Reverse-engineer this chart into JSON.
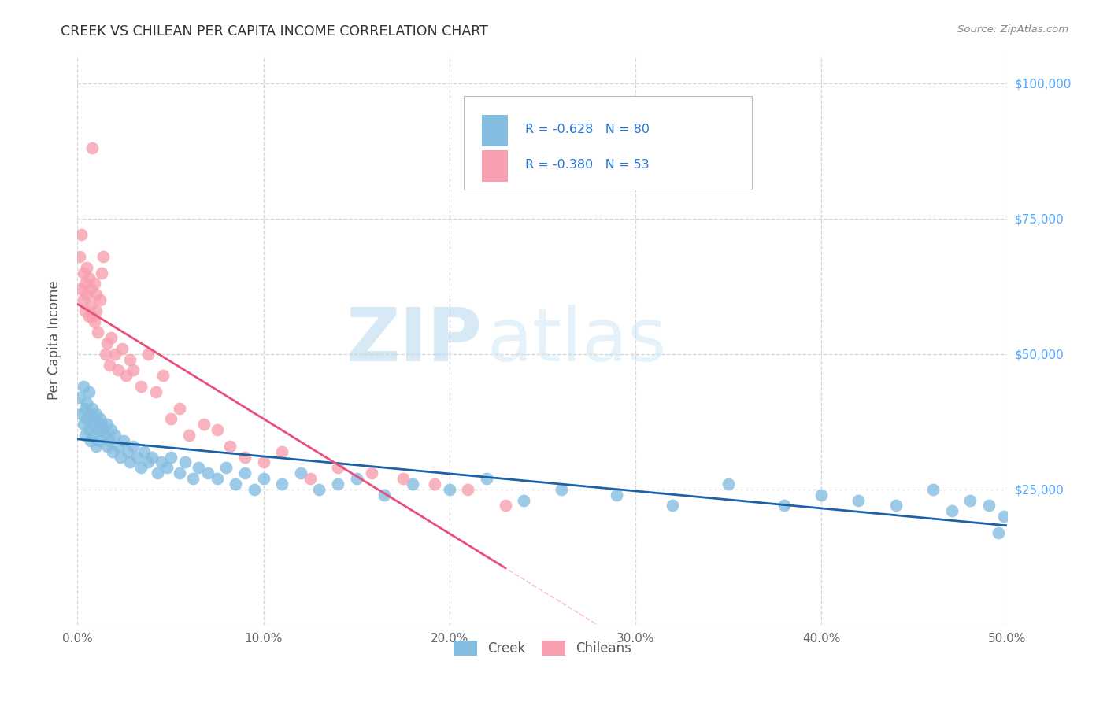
{
  "title": "CREEK VS CHILEAN PER CAPITA INCOME CORRELATION CHART",
  "source": "Source: ZipAtlas.com",
  "ylabel": "Per Capita Income",
  "xlabel_ticks": [
    "0.0%",
    "10.0%",
    "20.0%",
    "30.0%",
    "40.0%",
    "50.0%"
  ],
  "y_tick_values": [
    0,
    25000,
    50000,
    75000,
    100000
  ],
  "y_tick_labels": [
    "",
    "$25,000",
    "$50,000",
    "$75,000",
    "$100,000"
  ],
  "x_tick_values": [
    0.0,
    0.1,
    0.2,
    0.3,
    0.4,
    0.5
  ],
  "xmin": 0.0,
  "xmax": 0.5,
  "ymin": 0,
  "ymax": 105000,
  "legend_creek": "R = -0.628   N = 80",
  "legend_chilean": "R = -0.380   N = 53",
  "creek_color": "#85bde0",
  "chilean_color": "#f8a0b0",
  "creek_line_color": "#1a62a8",
  "chilean_line_color": "#e8507a",
  "creek_R": -0.628,
  "creek_N": 80,
  "chilean_R": -0.38,
  "chilean_N": 53,
  "creek_x": [
    0.001,
    0.002,
    0.003,
    0.003,
    0.004,
    0.004,
    0.005,
    0.005,
    0.006,
    0.006,
    0.007,
    0.007,
    0.008,
    0.008,
    0.009,
    0.009,
    0.01,
    0.01,
    0.011,
    0.012,
    0.012,
    0.013,
    0.014,
    0.015,
    0.016,
    0.016,
    0.017,
    0.018,
    0.019,
    0.02,
    0.022,
    0.023,
    0.025,
    0.027,
    0.028,
    0.03,
    0.032,
    0.034,
    0.036,
    0.038,
    0.04,
    0.043,
    0.045,
    0.048,
    0.05,
    0.055,
    0.058,
    0.062,
    0.065,
    0.07,
    0.075,
    0.08,
    0.085,
    0.09,
    0.095,
    0.1,
    0.11,
    0.12,
    0.13,
    0.14,
    0.15,
    0.165,
    0.18,
    0.2,
    0.22,
    0.24,
    0.26,
    0.29,
    0.32,
    0.35,
    0.38,
    0.4,
    0.42,
    0.44,
    0.46,
    0.47,
    0.48,
    0.49,
    0.495,
    0.498
  ],
  "creek_y": [
    42000,
    39000,
    44000,
    37000,
    40000,
    35000,
    41000,
    38000,
    43000,
    36000,
    39000,
    34000,
    40000,
    37000,
    38000,
    35000,
    39000,
    33000,
    36000,
    38000,
    34000,
    37000,
    36000,
    35000,
    33000,
    37000,
    34000,
    36000,
    32000,
    35000,
    33000,
    31000,
    34000,
    32000,
    30000,
    33000,
    31000,
    29000,
    32000,
    30000,
    31000,
    28000,
    30000,
    29000,
    31000,
    28000,
    30000,
    27000,
    29000,
    28000,
    27000,
    29000,
    26000,
    28000,
    25000,
    27000,
    26000,
    28000,
    25000,
    26000,
    27000,
    24000,
    26000,
    25000,
    27000,
    23000,
    25000,
    24000,
    22000,
    26000,
    22000,
    24000,
    23000,
    22000,
    25000,
    21000,
    23000,
    22000,
    17000,
    20000
  ],
  "chilean_x": [
    0.001,
    0.002,
    0.002,
    0.003,
    0.003,
    0.004,
    0.004,
    0.005,
    0.005,
    0.006,
    0.006,
    0.007,
    0.007,
    0.008,
    0.008,
    0.009,
    0.009,
    0.01,
    0.01,
    0.011,
    0.012,
    0.013,
    0.014,
    0.015,
    0.016,
    0.017,
    0.018,
    0.02,
    0.022,
    0.024,
    0.026,
    0.028,
    0.03,
    0.034,
    0.038,
    0.042,
    0.046,
    0.05,
    0.055,
    0.06,
    0.068,
    0.075,
    0.082,
    0.09,
    0.1,
    0.11,
    0.125,
    0.14,
    0.158,
    0.175,
    0.192,
    0.21,
    0.23
  ],
  "chilean_y": [
    68000,
    62000,
    72000,
    65000,
    60000,
    63000,
    58000,
    66000,
    61000,
    64000,
    57000,
    62000,
    59000,
    88000,
    57000,
    63000,
    56000,
    61000,
    58000,
    54000,
    60000,
    65000,
    68000,
    50000,
    52000,
    48000,
    53000,
    50000,
    47000,
    51000,
    46000,
    49000,
    47000,
    44000,
    50000,
    43000,
    46000,
    38000,
    40000,
    35000,
    37000,
    36000,
    33000,
    31000,
    30000,
    32000,
    27000,
    29000,
    28000,
    27000,
    26000,
    25000,
    22000
  ],
  "watermark_zip": "ZIP",
  "watermark_atlas": "atlas",
  "background_color": "#ffffff",
  "grid_color": "#cccccc",
  "tick_color": "#666666",
  "right_tick_color": "#4da6ff"
}
